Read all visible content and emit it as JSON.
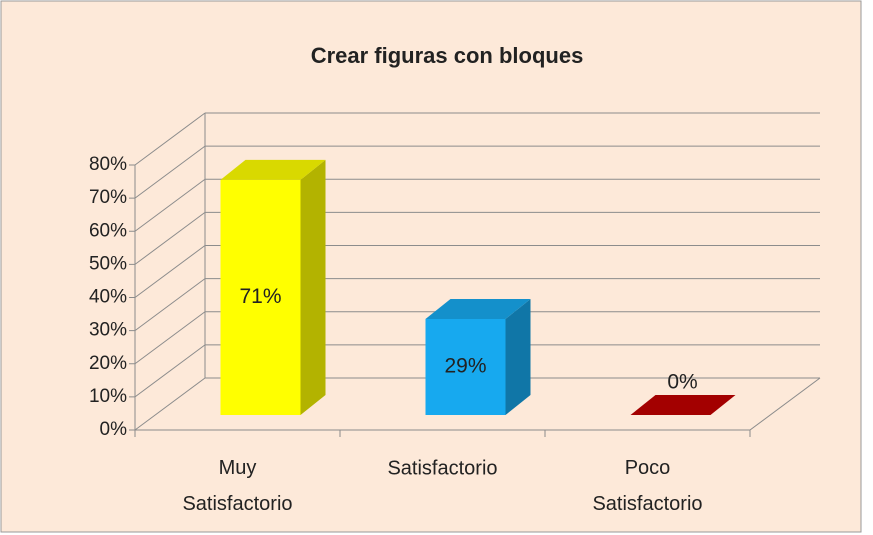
{
  "chart_data": {
    "type": "bar3d",
    "title": "Crear figuras con bloques",
    "categories": [
      "Muy Satisfactorio",
      "Satisfactorio",
      "Poco Satisfactorio"
    ],
    "values": [
      71,
      29,
      0
    ],
    "value_labels": [
      "71%",
      "29%",
      "0%"
    ],
    "colors": [
      "#ffff00",
      "#17a9ef",
      "#c00000"
    ],
    "ylim": [
      0,
      80
    ],
    "yticks": [
      {
        "value": 0,
        "label": "0%"
      },
      {
        "value": 10,
        "label": "10%"
      },
      {
        "value": 20,
        "label": "20%"
      },
      {
        "value": 30,
        "label": "30%"
      },
      {
        "value": 40,
        "label": "40%"
      },
      {
        "value": 50,
        "label": "50%"
      },
      {
        "value": 60,
        "label": "60%"
      },
      {
        "value": 70,
        "label": "70%"
      },
      {
        "value": 80,
        "label": "80%"
      }
    ],
    "grid": true
  }
}
